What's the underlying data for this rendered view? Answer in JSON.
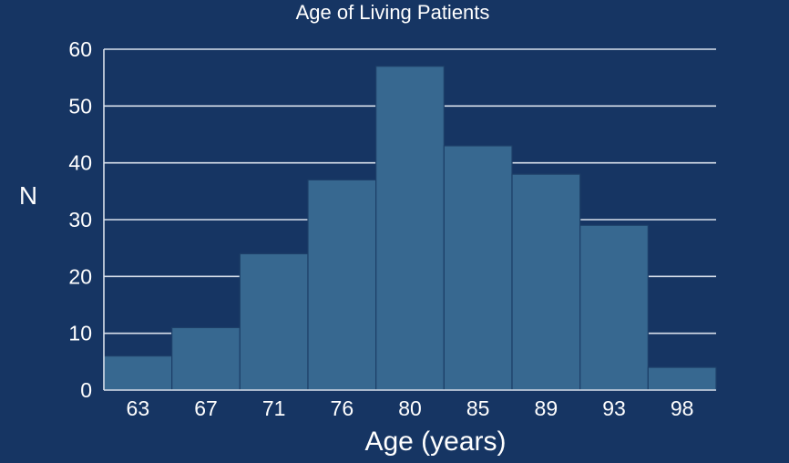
{
  "chart_data": {
    "type": "bar",
    "title": "Age of Living Patients",
    "xlabel": "Age (years)",
    "ylabel": "N",
    "categories": [
      "63",
      "67",
      "71",
      "76",
      "80",
      "85",
      "89",
      "93",
      "98"
    ],
    "values": [
      6,
      11,
      24,
      37,
      57,
      43,
      38,
      29,
      4
    ],
    "ylim": [
      0,
      60
    ],
    "yticks": [
      0,
      10,
      20,
      30,
      40,
      50,
      60
    ],
    "grid": true,
    "legend": "none",
    "colors": {
      "background": "#163563",
      "bar": "#376890",
      "bar_edge": "#1d3f68",
      "grid": "#d9e1ec",
      "text": "#ffffff"
    }
  }
}
